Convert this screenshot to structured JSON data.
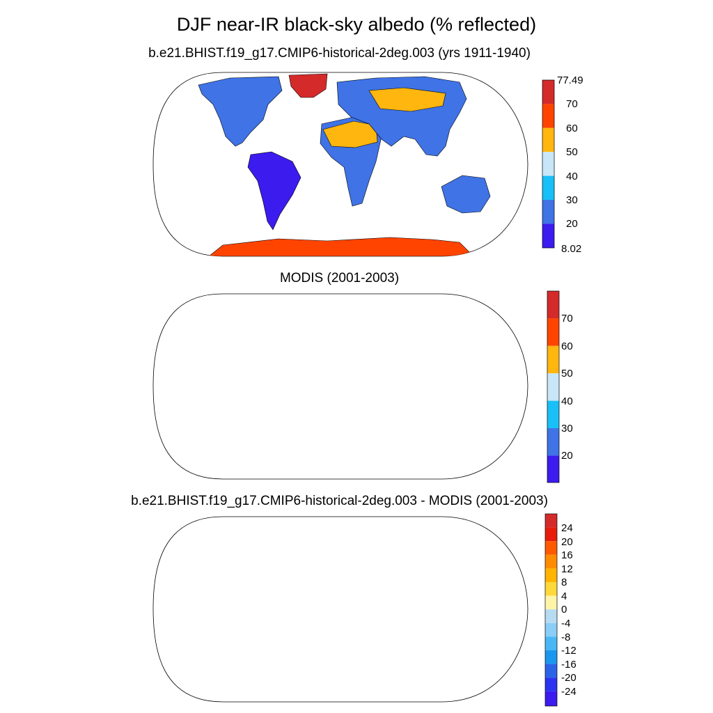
{
  "title": "DJF near-IR black-sky albedo (% reflected)",
  "panels": [
    {
      "title": "b.e21.BHIST.f19_g17.CMIP6-historical-2deg.003 (yrs 1911-1940)",
      "colorbar": {
        "labels": [
          "77.49",
          "70",
          "60",
          "50",
          "40",
          "30",
          "20",
          "8.02"
        ],
        "colors": [
          "#d42a2a",
          "#ff4400",
          "#ffb60f",
          "#c8e6f7",
          "#19c0f7",
          "#3f73e6",
          "#3c1bef"
        ]
      }
    },
    {
      "title": "MODIS (2001-2003)",
      "colorbar": {
        "labels": [
          "70",
          "60",
          "50",
          "40",
          "30",
          "20"
        ],
        "colors": [
          "#d42a2a",
          "#ff4400",
          "#ffb60f",
          "#c8e6f7",
          "#19c0f7",
          "#3f73e6",
          "#3c1bef"
        ]
      }
    },
    {
      "title": "b.e21.BHIST.f19_g17.CMIP6-historical-2deg.003 - MODIS (2001-2003)",
      "colorbar": {
        "labels": [
          "24",
          "20",
          "16",
          "12",
          "8",
          "4",
          "0",
          "-4",
          "-8",
          "-12",
          "-16",
          "-20",
          "-24"
        ],
        "colors": [
          "#d42a2a",
          "#e81c0c",
          "#ff5a00",
          "#ff8c00",
          "#ffb400",
          "#ffd83a",
          "#fff4a8",
          "#b7dcf2",
          "#8acdf6",
          "#49b7f5",
          "#1b97f0",
          "#2c64e8",
          "#2a33ef",
          "#3c1bef"
        ]
      }
    }
  ],
  "palette": {
    "p1": {
      "antarctica": "#ff4400",
      "greenland": "#d42a2a",
      "sa": "#3c1bef",
      "na": "#3f73e6",
      "africa": "#3f73e6",
      "sahara": "#ffb60f",
      "eurasia": "#3f73e6",
      "siberia": "#ffb60f",
      "australia": "#3f73e6"
    },
    "p2": {
      "antarctica": "#ff4400",
      "greenland": "#c8e6f7",
      "sa": "#3f73e6",
      "na": "#3f73e6",
      "africa": "#3f73e6",
      "sahara": "#ffb60f",
      "eurasia": "#3f73e6",
      "siberia": "#ffb60f",
      "australia": "#3f73e6"
    },
    "p3": {
      "antarctica": "#fff4a8",
      "greenland": "#d42a2a",
      "sa": "#b7dcf2",
      "na": "#b7dcf2",
      "africa": "#b7dcf2",
      "sahara": "#fff4a8",
      "eurasia": "#fff4a8",
      "siberia": "#ff8c00",
      "australia": "#b7dcf2"
    }
  }
}
